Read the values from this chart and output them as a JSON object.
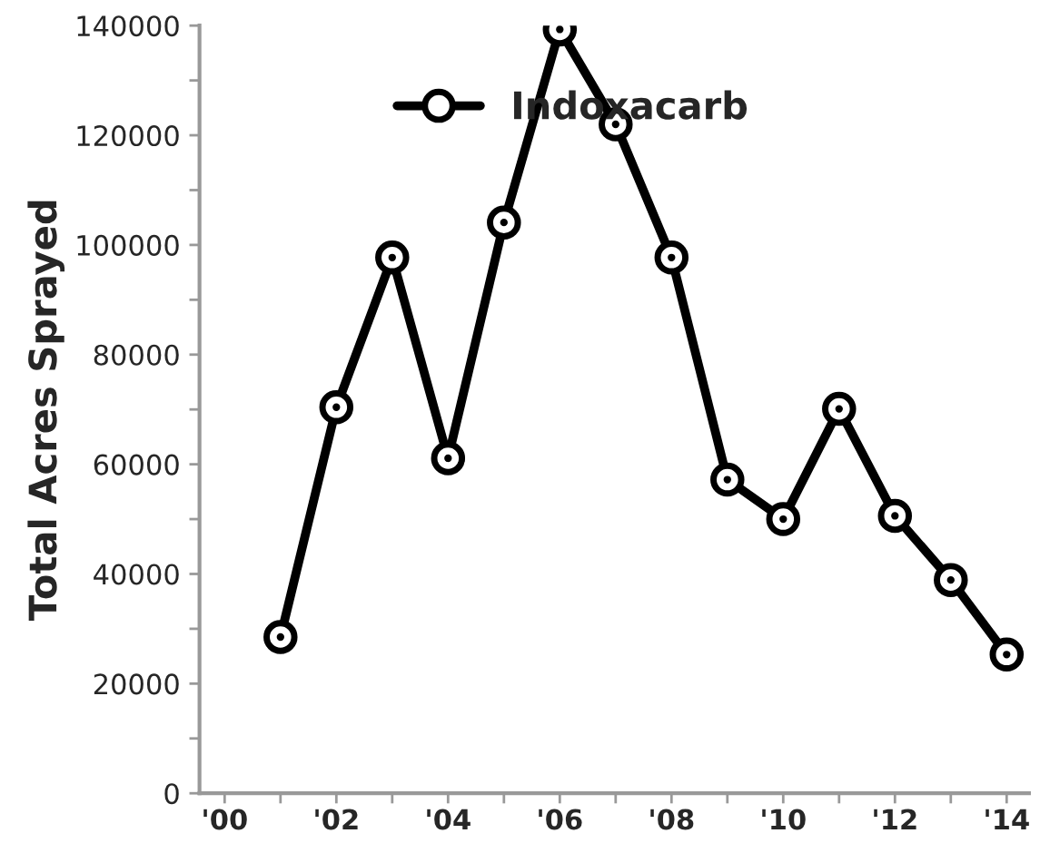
{
  "chart_data": {
    "type": "line",
    "ylabel": "Total Acres Sprayed",
    "x": [
      2001,
      2002,
      2003,
      2004,
      2005,
      2006,
      2007,
      2008,
      2009,
      2010,
      2011,
      2012,
      2013,
      2014
    ],
    "series": [
      {
        "name": "Indoxacarb",
        "color": "#000000",
        "values": [
          28500,
          70400,
          97700,
          61100,
          104100,
          139300,
          122000,
          97700,
          57200,
          50000,
          70100,
          50600,
          38900,
          25300
        ]
      }
    ],
    "xlim": [
      1999.55,
      2014.4
    ],
    "xticks": [
      {
        "value": 2000,
        "label": "'00"
      },
      {
        "value": 2001,
        "label": null
      },
      {
        "value": 2002,
        "label": "'02"
      },
      {
        "value": 2003,
        "label": null
      },
      {
        "value": 2004,
        "label": "'04"
      },
      {
        "value": 2005,
        "label": null
      },
      {
        "value": 2006,
        "label": "'06"
      },
      {
        "value": 2007,
        "label": null
      },
      {
        "value": 2008,
        "label": "'08"
      },
      {
        "value": 2009,
        "label": null
      },
      {
        "value": 2010,
        "label": "'10"
      },
      {
        "value": 2011,
        "label": null
      },
      {
        "value": 2012,
        "label": "'12"
      },
      {
        "value": 2013,
        "label": null
      },
      {
        "value": 2014,
        "label": "'14"
      }
    ],
    "ylim": [
      0,
      140000
    ],
    "yticks": [
      0,
      {
        "value": 10000,
        "label": null
      },
      20000,
      {
        "value": 30000,
        "label": null
      },
      40000,
      {
        "value": 50000,
        "label": null
      },
      60000,
      {
        "value": 70000,
        "label": null
      },
      80000,
      {
        "value": 90000,
        "label": null
      },
      100000,
      {
        "value": 110000,
        "label": null
      },
      120000,
      {
        "value": 130000,
        "label": null
      },
      140000
    ],
    "grid": false,
    "legend": "top",
    "marker": "circle",
    "line_style": "solid"
  }
}
